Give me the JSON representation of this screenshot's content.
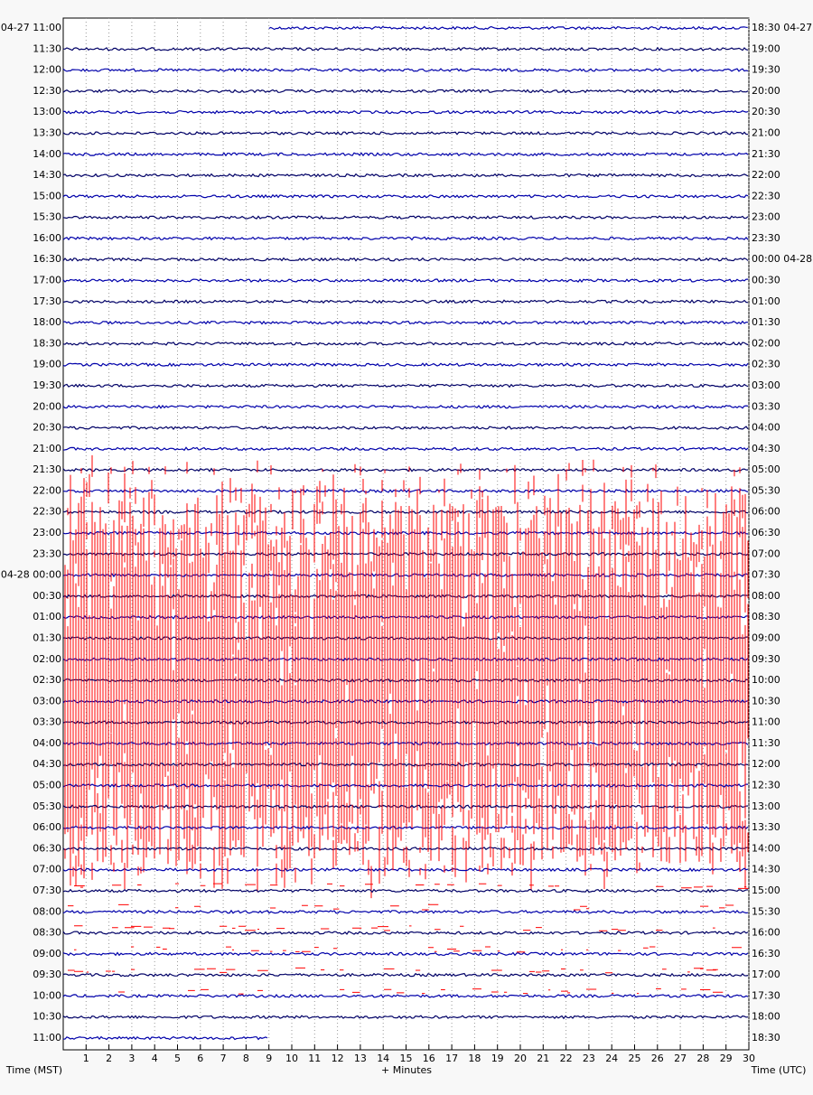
{
  "chart_data": {
    "type": "helicorder",
    "left_labels": [
      "04-27 11:00",
      "11:30",
      "12:00",
      "12:30",
      "13:00",
      "13:30",
      "14:00",
      "14:30",
      "15:00",
      "15:30",
      "16:00",
      "16:30",
      "17:00",
      "17:30",
      "18:00",
      "18:30",
      "19:00",
      "19:30",
      "20:00",
      "20:30",
      "21:00",
      "21:30",
      "22:00",
      "22:30",
      "23:00",
      "23:30",
      "04-28 00:00",
      "00:30",
      "01:00",
      "01:30",
      "02:00",
      "02:30",
      "03:00",
      "03:30",
      "04:00",
      "04:30",
      "05:00",
      "05:30",
      "06:00",
      "06:30",
      "07:00",
      "07:30",
      "08:00",
      "08:30",
      "09:00",
      "09:30",
      "10:00",
      "10:30",
      "11:00"
    ],
    "right_labels": [
      "18:30 04-27",
      "19:00",
      "19:30",
      "20:00",
      "20:30",
      "21:00",
      "21:30",
      "22:00",
      "22:30",
      "23:00",
      "23:30",
      "00:00 04-28",
      "00:30",
      "01:00",
      "01:30",
      "02:00",
      "02:30",
      "03:00",
      "03:30",
      "04:00",
      "04:30",
      "05:00",
      "05:30",
      "06:00",
      "06:30",
      "07:00",
      "07:30",
      "08:00",
      "08:30",
      "09:00",
      "09:30",
      "10:00",
      "10:30",
      "11:00",
      "11:30",
      "12:00",
      "12:30",
      "13:00",
      "13:30",
      "14:00",
      "14:30",
      "15:00",
      "15:30",
      "16:00",
      "16:30",
      "17:00",
      "17:30",
      "18:00",
      "18:30"
    ],
    "left_axis_label": "Time (MST)",
    "right_axis_label": "Time (UTC)",
    "xlabel": "+ Minutes",
    "xlim": [
      0,
      30
    ],
    "xticks": [
      1,
      2,
      3,
      4,
      5,
      6,
      7,
      8,
      9,
      10,
      11,
      12,
      13,
      14,
      15,
      16,
      17,
      18,
      19,
      20,
      21,
      22,
      23,
      24,
      25,
      26,
      27,
      28,
      29,
      30
    ],
    "trace_colors": [
      "#0000aa",
      "#000066"
    ],
    "event_color": "#ff0000"
  }
}
